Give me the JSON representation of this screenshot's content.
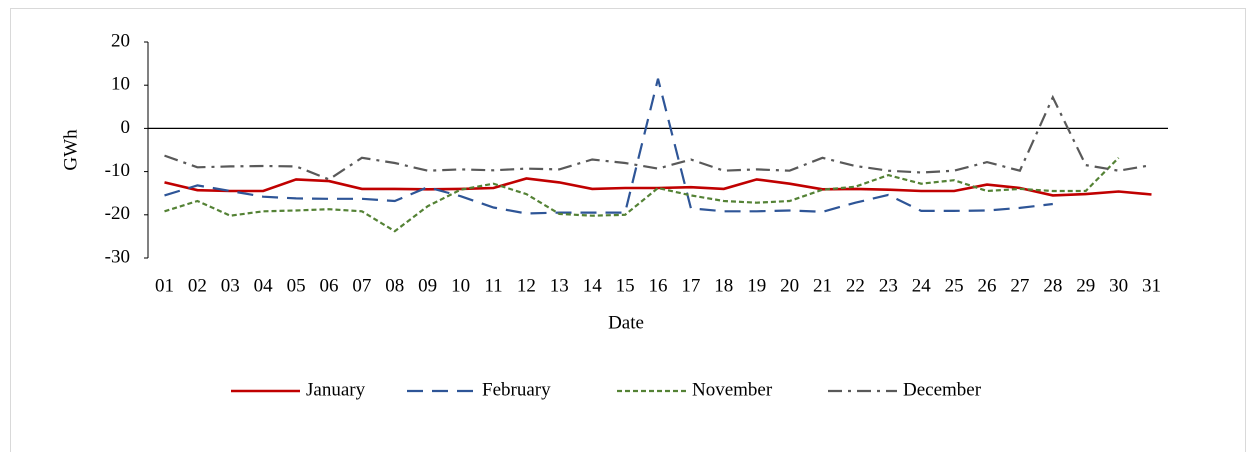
{
  "chart_data": {
    "type": "line",
    "x_label": "Date",
    "y_label": "GWh",
    "categories": [
      "01",
      "02",
      "03",
      "04",
      "05",
      "06",
      "07",
      "08",
      "09",
      "10",
      "11",
      "12",
      "13",
      "14",
      "15",
      "16",
      "17",
      "18",
      "19",
      "20",
      "21",
      "22",
      "23",
      "24",
      "25",
      "26",
      "27",
      "28",
      "29",
      "30",
      "31"
    ],
    "ylim": [
      -30,
      20
    ],
    "yticks": [
      -30,
      -20,
      -10,
      0,
      10,
      20
    ],
    "series": [
      {
        "name": "January",
        "color": "#c00000",
        "line_style": "solid",
        "values": [
          -12.5,
          -14.3,
          -14.5,
          -14.5,
          -11.8,
          -12.2,
          -14,
          -14,
          -14.1,
          -14,
          -13.8,
          -11.6,
          -12.5,
          -14,
          -13.8,
          -13.8,
          -13.6,
          -14,
          -11.8,
          -12.8,
          -14.1,
          -14,
          -14.2,
          -14.5,
          -14.5,
          -13,
          -13.8,
          -15.5,
          -15.2,
          -14.6,
          -15.3
        ]
      },
      {
        "name": "February",
        "color": "#2e5597",
        "line_style": "long-dash",
        "values": [
          -15.5,
          -13.2,
          -14.5,
          -15.8,
          -16.2,
          -16.3,
          -16.3,
          -16.8,
          -13.6,
          -15.7,
          -18.3,
          -19.7,
          -19.5,
          -19.5,
          -19.5,
          11.5,
          -18.5,
          -19.2,
          -19.2,
          -19,
          -19.3,
          -17.2,
          -15.4,
          -19.1,
          -19.1,
          -19,
          -18.4,
          -17.5,
          null,
          null,
          null
        ]
      },
      {
        "name": "November",
        "color": "#548235",
        "line_style": "short-dash",
        "values": [
          -19.2,
          -16.8,
          -20.2,
          -19.2,
          -19,
          -18.7,
          -19.2,
          -23.8,
          -18,
          -14.2,
          -12.8,
          -15.2,
          -19.8,
          -20.2,
          -20,
          -13.8,
          -15.5,
          -16.8,
          -17.2,
          -16.8,
          -14.2,
          -13.5,
          -10.8,
          -12.8,
          -12,
          -14.5,
          -14,
          -14.5,
          -14.5,
          -6.8,
          null
        ]
      },
      {
        "name": "December",
        "color": "#595959",
        "line_style": "dash-dot",
        "values": [
          -6.3,
          -9,
          -8.8,
          -8.7,
          -8.8,
          -11.8,
          -6.8,
          -8,
          -9.8,
          -9.5,
          -9.7,
          -9.3,
          -9.5,
          -7.2,
          -8,
          -9.3,
          -7.2,
          -9.8,
          -9.5,
          -9.8,
          -6.8,
          -8.7,
          -9.8,
          -10.2,
          -9.8,
          -7.8,
          -9.8,
          7.2,
          -8.5,
          -9.8,
          -8.5
        ]
      }
    ],
    "legend": "bottom",
    "grid": false
  }
}
